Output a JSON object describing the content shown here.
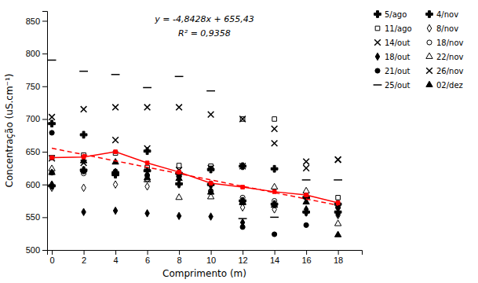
{
  "chart_data": {
    "type": "scatter",
    "xlabel": "Comprimento (m)",
    "ylabel": "Concentração (uS.cm⁻¹)",
    "annotations": [
      "y = -4,8428x + 655,43",
      "R² = 0,9358"
    ],
    "x": [
      0,
      2,
      4,
      6,
      8,
      10,
      12,
      14,
      16,
      18
    ],
    "xlim": [
      -0.3,
      19.5
    ],
    "xticks": [
      0,
      2,
      4,
      6,
      8,
      10,
      12,
      14,
      16,
      18
    ],
    "ylim": [
      500,
      865
    ],
    "yticks": [
      500,
      550,
      600,
      650,
      700,
      750,
      800,
      850
    ],
    "grid": false,
    "legend": "right",
    "series": [
      {
        "name": "5/ago",
        "color": "black",
        "marker": "plus-filled",
        "values": [
          598,
          622,
          615,
          621,
          601,
          623,
          628,
          624,
          580,
          570
        ]
      },
      {
        "name": "11/ago",
        "color": "black",
        "marker": "square-open",
        "values": [
          641,
          645,
          648,
          626,
          629,
          628,
          700,
          700,
          582,
          580
        ]
      },
      {
        "name": "14/out",
        "color": "black",
        "marker": "x",
        "values": [
          703,
          715,
          718,
          718,
          718,
          707,
          700,
          685,
          635,
          638
        ]
      },
      {
        "name": "18/out",
        "color": "black",
        "marker": "diamond",
        "values": [
          600,
          558,
          560,
          556,
          552,
          551,
          542,
          570,
          562,
          555
        ]
      },
      {
        "name": "21/out",
        "color": "black",
        "marker": "circle",
        "values": [
          679,
          620,
          617,
          614,
          613,
          600,
          535,
          524,
          538,
          565
        ]
      },
      {
        "name": "25/out",
        "color": "black",
        "marker": "hline",
        "values": [
          790,
          773,
          768,
          748,
          765,
          743,
          548,
          550,
          607,
          607
        ]
      },
      {
        "name": "4/nov",
        "color": "black",
        "marker": "plus-filled",
        "values": [
          693,
          676,
          618,
          651,
          617,
          600,
          575,
          570,
          558,
          558
        ]
      },
      {
        "name": "8/nov",
        "color": "black",
        "marker": "diamond-open",
        "values": [
          595,
          595,
          600,
          597,
          600,
          590,
          565,
          562,
          557,
          553
        ]
      },
      {
        "name": "18/nov",
        "color": "black",
        "marker": "circle-open",
        "values": [
          618,
          617,
          620,
          608,
          612,
          590,
          580,
          575,
          580,
          570
        ]
      },
      {
        "name": "22/nov",
        "color": "black",
        "marker": "triangle-open",
        "values": [
          624,
          622,
          619,
          607,
          580,
          581,
          572,
          596,
          590,
          540
        ]
      },
      {
        "name": "26/nov",
        "color": "black",
        "marker": "x",
        "values": [
          640,
          633,
          668,
          655,
          622,
          625,
          628,
          663,
          625,
          638
        ]
      },
      {
        "name": "02/dez",
        "color": "black",
        "marker": "triangle",
        "values": [
          618,
          636,
          634,
          610,
          609,
          588,
          573,
          568,
          573,
          523
        ]
      },
      {
        "type": "line",
        "color": "red",
        "marker": "square",
        "line_style": "solid",
        "values": [
          641,
          642,
          650,
          633,
          619,
          602,
          596,
          589,
          584,
          572
        ]
      },
      {
        "type": "line",
        "color": "red",
        "line_style": "dashed",
        "x": [
          0,
          18
        ],
        "values": [
          655.43,
          568.2596
        ]
      }
    ]
  }
}
